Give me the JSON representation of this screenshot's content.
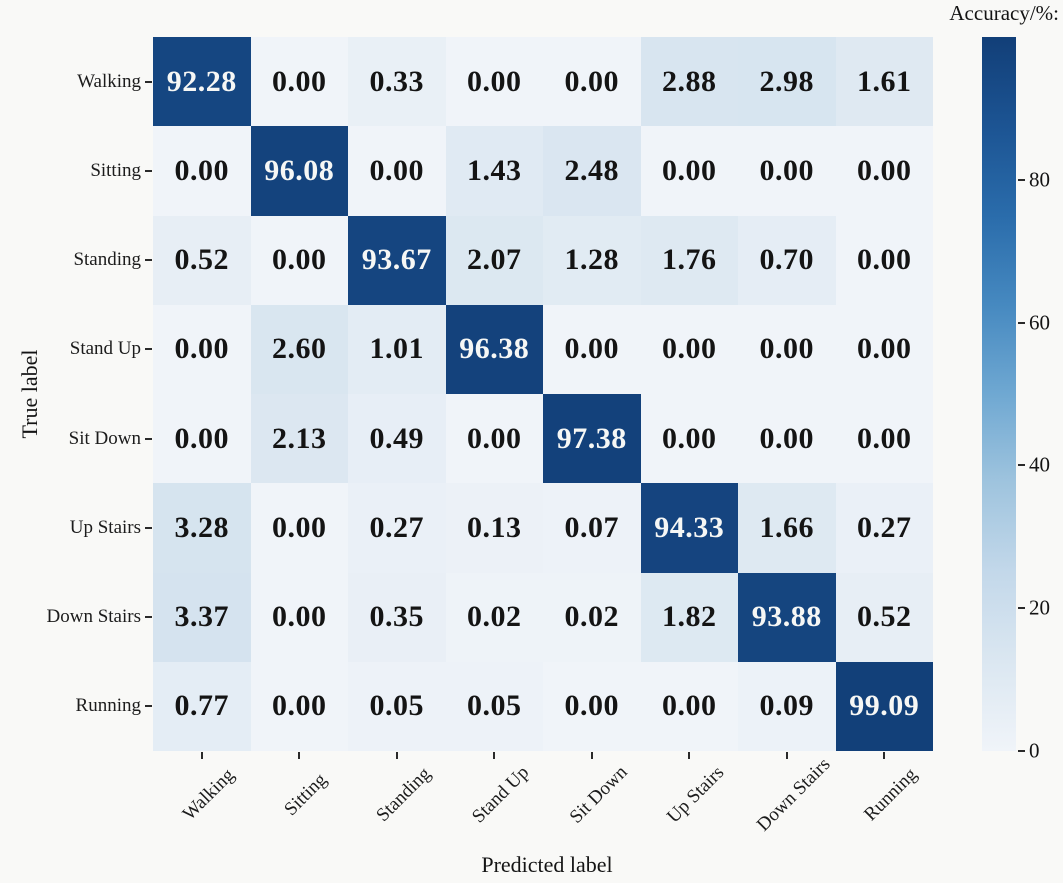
{
  "chart_data": {
    "type": "heatmap",
    "subtype": "confusion-matrix",
    "colorbar_title": "Accuracy/%:",
    "xlabel": "Predicted label",
    "ylabel": "True label",
    "categories": [
      "Walking",
      "Sitting",
      "Standing",
      "Stand Up",
      "Sit Down",
      "Up Stairs",
      "Down Stairs",
      "Running"
    ],
    "rows": [
      [
        92.28,
        0.0,
        0.33,
        0.0,
        0.0,
        2.88,
        2.98,
        1.61
      ],
      [
        0.0,
        96.08,
        0.0,
        1.43,
        2.48,
        0.0,
        0.0,
        0.0
      ],
      [
        0.52,
        0.0,
        93.67,
        2.07,
        1.28,
        1.76,
        0.7,
        0.0
      ],
      [
        0.0,
        2.6,
        1.01,
        96.38,
        0.0,
        0.0,
        0.0,
        0.0
      ],
      [
        0.0,
        2.13,
        0.49,
        0.0,
        97.38,
        0.0,
        0.0,
        0.0
      ],
      [
        3.28,
        0.0,
        0.27,
        0.13,
        0.07,
        94.33,
        1.66,
        0.27
      ],
      [
        3.37,
        0.0,
        0.35,
        0.02,
        0.02,
        1.82,
        93.88,
        0.52
      ],
      [
        0.77,
        0.0,
        0.05,
        0.05,
        0.0,
        0.0,
        0.09,
        99.09
      ]
    ],
    "value_decimals": 2,
    "value_range": [
      0,
      100
    ],
    "colorbar_ticks": [
      0,
      20,
      40,
      60,
      80
    ],
    "colormap": "Blues",
    "legend_position": "right",
    "grid": false
  },
  "colors": {
    "background": "#f9f9f7",
    "cell_text_dark": "#141414",
    "cell_text_light": "#f6f7f5",
    "tick_color": "#2a2a2a",
    "blues_stops": [
      "#f0f4f9",
      "#dbe7f1",
      "#c3d8ea",
      "#9fc4de",
      "#6fa8d2",
      "#4689c0",
      "#2a6cab",
      "#1c5493",
      "#123f78"
    ]
  }
}
